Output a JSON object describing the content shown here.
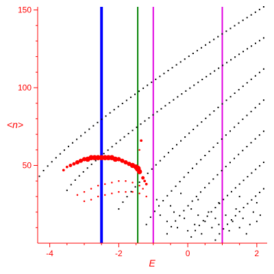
{
  "chart_data": {
    "type": "scatter",
    "title": "",
    "xlabel": "E",
    "ylabel": "<n>",
    "xlim": [
      -4.35,
      2.3
    ],
    "ylim": [
      0,
      152
    ],
    "x_ticks": [
      -4,
      -2,
      0,
      2
    ],
    "x_tick_labels": [
      "-4",
      "-2",
      "0",
      "2"
    ],
    "y_ticks": [
      50,
      100,
      150
    ],
    "y_tick_labels": [
      "50",
      "100",
      "150"
    ],
    "grid": false,
    "legend": "none",
    "axis_color": "#ff0000",
    "vertical_lines": [
      {
        "x": -2.5,
        "color": "#0000ff",
        "width": "thick"
      },
      {
        "x": -1.45,
        "color": "#008000",
        "width": "normal"
      },
      {
        "x": -1.0,
        "color": "#e000e0",
        "width": "normal"
      },
      {
        "x": 1.0,
        "color": "#e000e0",
        "width": "normal"
      }
    ],
    "series": [
      {
        "color": "#000000",
        "marker": "dot",
        "description_bands": [
          {
            "x_start": -4.3,
            "y_start": 43,
            "x_end": 2.2,
            "y_end": 152,
            "step": 0.12
          },
          {
            "x_start": -3.5,
            "y_start": 34,
            "x_end": 2.2,
            "y_end": 132,
            "step": 0.12
          },
          {
            "x_start": -2.0,
            "y_start": 22,
            "x_end": 2.2,
            "y_end": 112,
            "step": 0.12
          },
          {
            "x_start": -1.2,
            "y_start": 12,
            "x_end": 2.2,
            "y_end": 92,
            "step": 0.12
          },
          {
            "x_start": -0.6,
            "y_start": 6,
            "x_end": 2.2,
            "y_end": 72,
            "step": 0.12
          },
          {
            "x_start": 0.1,
            "y_start": 4,
            "x_end": 2.2,
            "y_end": 52,
            "step": 0.12
          },
          {
            "x_start": 0.8,
            "y_start": 2,
            "x_end": 2.2,
            "y_end": 35,
            "step": 0.12
          }
        ],
        "points": [
          [
            -0.8,
            18
          ],
          [
            -0.6,
            14
          ],
          [
            -0.4,
            20
          ],
          [
            -0.3,
            10
          ],
          [
            -0.1,
            16
          ],
          [
            0.0,
            8
          ],
          [
            0.1,
            22
          ],
          [
            0.2,
            12
          ],
          [
            0.3,
            18
          ],
          [
            0.4,
            6
          ],
          [
            0.5,
            14
          ],
          [
            0.6,
            20
          ],
          [
            0.7,
            10
          ],
          [
            0.8,
            16
          ],
          [
            0.9,
            12
          ],
          [
            1.1,
            18
          ],
          [
            1.2,
            8
          ],
          [
            1.3,
            14
          ],
          [
            1.4,
            22
          ],
          [
            1.5,
            10
          ],
          [
            1.6,
            16
          ],
          [
            1.7,
            6
          ],
          [
            1.8,
            12
          ],
          [
            1.9,
            20
          ],
          [
            2.0,
            14
          ],
          [
            2.1,
            18
          ],
          [
            -0.5,
            24
          ],
          [
            0.3,
            28
          ],
          [
            0.9,
            26
          ],
          [
            1.5,
            30
          ],
          [
            2.0,
            26
          ],
          [
            -0.9,
            28
          ],
          [
            -0.2,
            32
          ]
        ]
      },
      {
        "color": "#ff0000",
        "marker": "dot",
        "points": [
          [
            -3.6,
            47
          ],
          [
            -3.5,
            49
          ],
          [
            -3.4,
            50
          ],
          [
            -3.3,
            51
          ],
          [
            -3.2,
            52
          ],
          [
            -3.1,
            53
          ],
          [
            -3.0,
            54
          ],
          [
            -2.9,
            54
          ],
          [
            -2.8,
            55
          ],
          [
            -2.7,
            55
          ],
          [
            -2.6,
            55
          ],
          [
            -2.5,
            55
          ],
          [
            -2.4,
            55
          ],
          [
            -2.3,
            55
          ],
          [
            -2.2,
            55
          ],
          [
            -2.1,
            54
          ],
          [
            -2.0,
            54
          ],
          [
            -1.9,
            53
          ],
          [
            -1.8,
            52
          ],
          [
            -1.7,
            51
          ],
          [
            -1.6,
            50
          ],
          [
            -1.5,
            49
          ],
          [
            -1.45,
            48
          ],
          [
            -1.4,
            46
          ],
          [
            -1.3,
            42
          ],
          [
            -1.25,
            40
          ],
          [
            -1.2,
            38
          ],
          [
            -1.4,
            60
          ],
          [
            -1.35,
            66
          ],
          [
            -3.2,
            31
          ],
          [
            -3.0,
            33
          ],
          [
            -2.8,
            35
          ],
          [
            -2.6,
            37
          ],
          [
            -2.4,
            38
          ],
          [
            -2.2,
            39
          ],
          [
            -2.0,
            40
          ],
          [
            -1.8,
            40
          ],
          [
            -1.6,
            39
          ],
          [
            -1.4,
            37
          ],
          [
            -1.3,
            35
          ],
          [
            -3.0,
            27
          ],
          [
            -2.8,
            28
          ],
          [
            -2.6,
            30
          ],
          [
            -2.4,
            31
          ],
          [
            -2.2,
            32
          ],
          [
            -2.0,
            33
          ],
          [
            -1.8,
            33
          ],
          [
            -1.6,
            33
          ],
          [
            -1.4,
            32
          ],
          [
            -1.2,
            30
          ]
        ],
        "sizes": [
          3,
          3,
          4,
          4,
          5,
          5,
          5,
          6,
          6,
          6,
          6,
          6,
          6,
          6,
          6,
          6,
          5,
          5,
          5,
          5,
          6,
          6,
          7,
          6,
          4,
          3,
          3,
          2,
          3,
          2,
          2,
          2,
          2,
          2,
          2,
          2,
          2,
          2,
          2,
          2,
          2,
          2,
          2,
          2,
          2,
          2,
          2,
          2,
          2,
          2
        ]
      }
    ]
  }
}
